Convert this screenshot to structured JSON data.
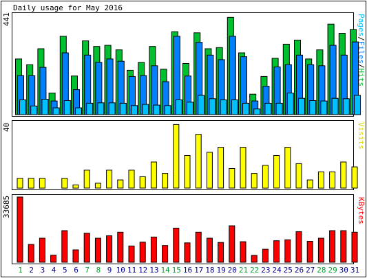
{
  "title": "Daily usage for May 2016",
  "colors": {
    "hits": "#00c030",
    "files": "#0080ff",
    "pages": "#00c0ff",
    "visits": "#ffff00",
    "kbytes": "#ff0000",
    "weekday": "#00008b",
    "weekend": "#00a030",
    "frame": "#000000",
    "panel_bg": "#ffffff",
    "window_bg": "#c8c8c8"
  },
  "chart_data": [
    {
      "type": "bar",
      "panel": "hits-files-pages",
      "categories": [
        "1",
        "2",
        "3",
        "4",
        "5",
        "6",
        "7",
        "8",
        "9",
        "10",
        "11",
        "12",
        "13",
        "14",
        "15",
        "16",
        "17",
        "18",
        "19",
        "20",
        "21",
        "22",
        "23",
        "24",
        "25",
        "26",
        "27",
        "28",
        "29",
        "30",
        "31"
      ],
      "ymax_label": "441",
      "ylim": [
        0,
        441
      ],
      "side_label": {
        "pages": "Pages",
        "sep1": "/",
        "files": "Files",
        "sep2": "/",
        "hits": "Hits"
      },
      "series": [
        {
          "name": "Hits",
          "values": [
            245,
            220,
            290,
            95,
            345,
            170,
            325,
            300,
            305,
            285,
            195,
            230,
            300,
            200,
            365,
            225,
            360,
            290,
            295,
            428,
            272,
            90,
            168,
            248,
            310,
            328,
            245,
            285,
            398,
            358,
            375
          ]
        },
        {
          "name": "Files",
          "values": [
            172,
            172,
            208,
            60,
            272,
            110,
            262,
            230,
            245,
            235,
            168,
            172,
            215,
            145,
            345,
            170,
            318,
            262,
            242,
            345,
            255,
            60,
            125,
            210,
            220,
            262,
            220,
            215,
            305,
            262,
            320
          ]
        },
        {
          "name": "Pages",
          "values": [
            65,
            38,
            68,
            30,
            62,
            30,
            50,
            52,
            52,
            50,
            40,
            45,
            42,
            40,
            65,
            55,
            85,
            70,
            65,
            65,
            50,
            25,
            50,
            50,
            95,
            72,
            62,
            60,
            72,
            70,
            85
          ]
        }
      ]
    },
    {
      "type": "bar",
      "panel": "visits",
      "categories": [
        "1",
        "2",
        "3",
        "4",
        "5",
        "6",
        "7",
        "8",
        "9",
        "10",
        "11",
        "12",
        "13",
        "14",
        "15",
        "16",
        "17",
        "18",
        "19",
        "20",
        "21",
        "22",
        "23",
        "24",
        "25",
        "26",
        "27",
        "28",
        "29",
        "30",
        "31"
      ],
      "ymax_label": "40",
      "ylim": [
        0,
        40
      ],
      "side_label": "Visits",
      "series": [
        {
          "name": "Visits",
          "values": [
            6,
            6,
            6,
            0,
            6,
            2,
            11,
            3,
            11,
            5,
            11,
            7,
            16,
            9,
            39,
            20,
            33,
            22,
            25,
            12,
            25,
            9,
            14,
            20,
            25,
            15,
            5,
            10,
            10,
            16,
            13
          ]
        }
      ]
    },
    {
      "type": "bar",
      "panel": "kbytes",
      "categories": [
        "1",
        "2",
        "3",
        "4",
        "5",
        "6",
        "7",
        "8",
        "9",
        "10",
        "11",
        "12",
        "13",
        "14",
        "15",
        "16",
        "17",
        "18",
        "19",
        "20",
        "21",
        "22",
        "23",
        "24",
        "25",
        "26",
        "27",
        "28",
        "29",
        "30",
        "31"
      ],
      "ymax_label": "33685",
      "ylim": [
        0,
        33685
      ],
      "side_label": "KBytes",
      "series": [
        {
          "name": "KBytes",
          "values": [
            33685,
            9200,
            12400,
            3600,
            16300,
            6400,
            15000,
            12400,
            13700,
            15500,
            8400,
            10400,
            13000,
            8600,
            17600,
            10000,
            15500,
            12400,
            10200,
            18800,
            10600,
            3500,
            6700,
            11100,
            11600,
            15800,
            10800,
            12400,
            16300,
            16300,
            15500
          ]
        }
      ]
    }
  ],
  "weekend_days": [
    1,
    7,
    8,
    14,
    15,
    21,
    22,
    28,
    29
  ]
}
